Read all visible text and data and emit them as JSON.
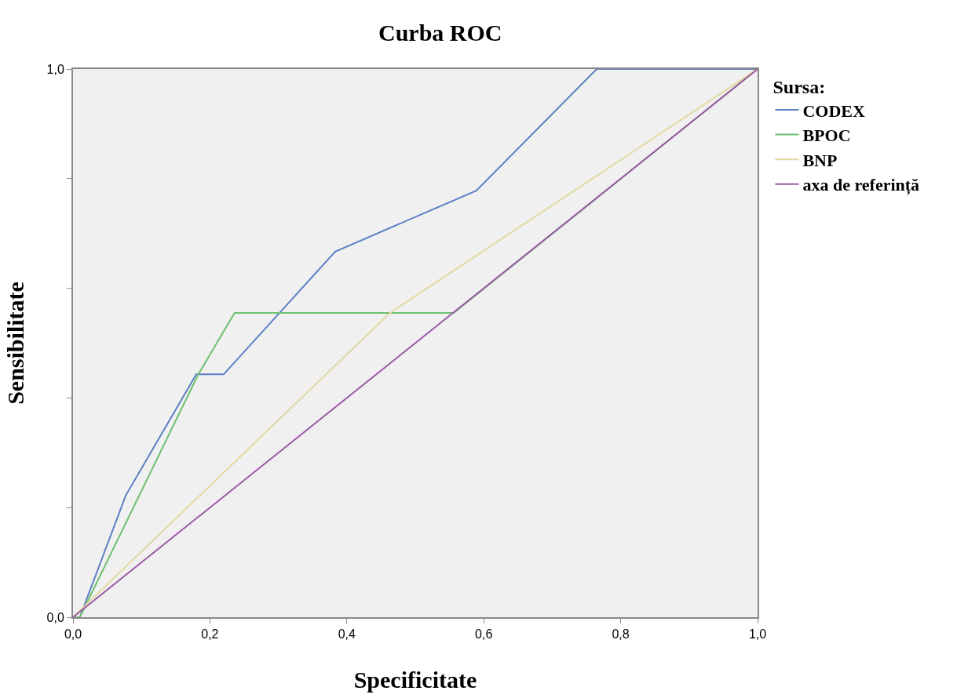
{
  "chart_data": {
    "type": "line",
    "title": "Curba ROC",
    "xlabel": "Specificitate",
    "ylabel": "Sensibilitate",
    "legend_title": "Sursa:",
    "legend": "top right",
    "grid": false,
    "marker": "none",
    "line_style": "solid",
    "xlim": [
      0,
      1
    ],
    "ylim": [
      0,
      1
    ],
    "xticks": [
      {
        "value": 0,
        "label": "0,0"
      },
      {
        "value": 0.2,
        "label": "0,2"
      },
      {
        "value": 0.4,
        "label": "0,4"
      },
      {
        "value": 0.6,
        "label": "0,6"
      },
      {
        "value": 0.8,
        "label": "0,8"
      },
      {
        "value": 1,
        "label": "1,0"
      }
    ],
    "yticks": [
      {
        "value": 0,
        "label": "0,0"
      },
      {
        "value": 0.2,
        "label": null
      },
      {
        "value": 0.4,
        "label": null
      },
      {
        "value": 0.6,
        "label": null
      },
      {
        "value": 0.8,
        "label": null
      },
      {
        "value": 1,
        "label": "1,0"
      }
    ],
    "series": [
      {
        "name": "CODEX",
        "color": "#5b7fc4",
        "x": [
          0,
          0.01,
          0.077,
          0.18,
          0.22,
          0.383,
          0.589,
          0.765,
          1
        ],
        "values": [
          0,
          0,
          0.222,
          0.443,
          0.443,
          0.667,
          0.778,
          1,
          1
        ]
      },
      {
        "name": "BPOC",
        "color": "#6cc070",
        "x": [
          0,
          0.01,
          0.183,
          0.236,
          0.556,
          1
        ],
        "values": [
          0,
          0,
          0.443,
          0.555,
          0.555,
          1
        ]
      },
      {
        "name": "BNP",
        "color": "#e3d9a0",
        "x": [
          0,
          0.463,
          1
        ],
        "values": [
          0,
          0.555,
          1
        ]
      },
      {
        "name": "axa de referință",
        "color": "#9b5aa6",
        "x": [
          0,
          1
        ],
        "values": [
          0,
          1
        ]
      }
    ]
  }
}
